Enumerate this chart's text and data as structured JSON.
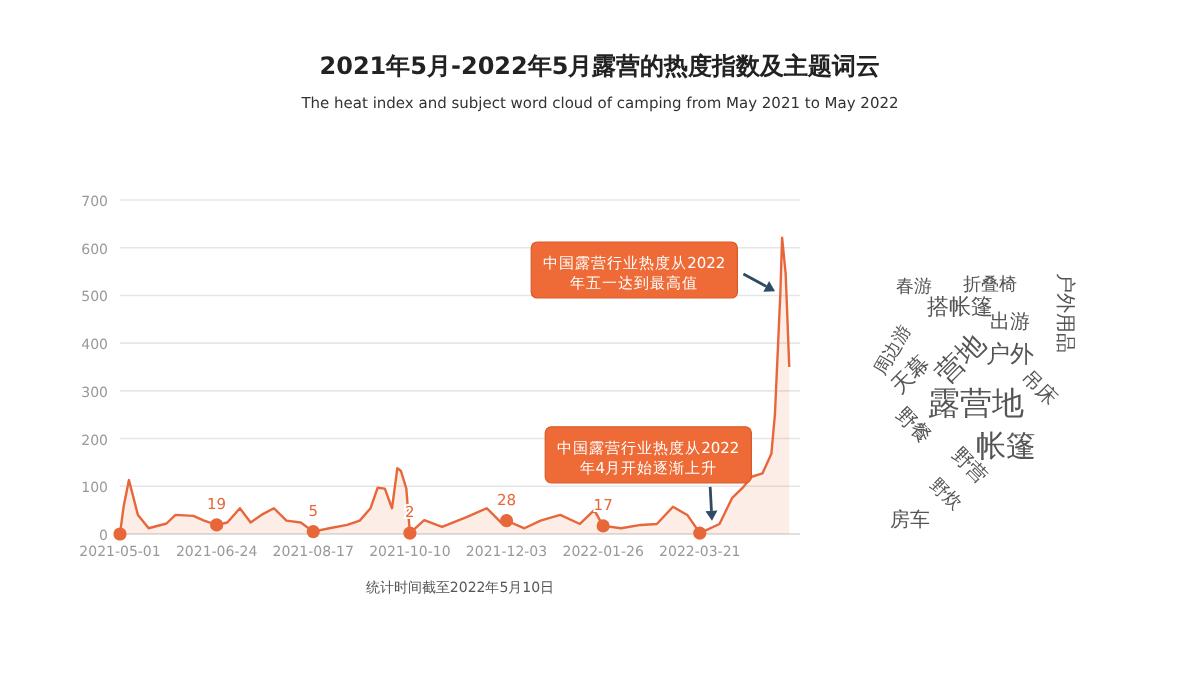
{
  "chart_data": [
    {
      "type": "area",
      "title": "2021年5月-2022年5月露营的热度指数及主题词云",
      "subtitle": "The heat index and subject word cloud of camping from May 2021 to May 2022",
      "xlim": [
        "2021-05-01",
        "2022-05-16"
      ],
      "ylim": [
        0,
        700
      ],
      "yticks": [
        0,
        100,
        200,
        300,
        400,
        500,
        600,
        700
      ],
      "xticks": [
        "2021-05-01",
        "2021-06-24",
        "2021-08-17",
        "2021-10-10",
        "2021-12-03",
        "2022-01-26",
        "2022-03-21"
      ],
      "grid": "y",
      "series": [
        {
          "type": "area",
          "color": "#e8673a",
          "x": [
            "2021-05-01",
            "2021-05-03",
            "2021-05-06",
            "2021-05-11",
            "2021-05-14",
            "2021-05-17",
            "2021-05-27",
            "2021-06-01",
            "2021-06-11",
            "2021-06-17",
            "2021-06-24",
            "2021-06-30",
            "2021-07-07",
            "2021-07-13",
            "2021-07-19",
            "2021-07-26",
            "2021-08-02",
            "2021-08-10",
            "2021-08-17",
            "2021-08-26",
            "2021-09-05",
            "2021-09-12",
            "2021-09-18",
            "2021-09-22",
            "2021-09-26",
            "2021-09-30",
            "2021-10-03",
            "2021-10-05",
            "2021-10-08",
            "2021-10-10",
            "2021-10-18",
            "2021-10-28",
            "2021-11-11",
            "2021-11-22",
            "2021-11-30",
            "2021-12-03",
            "2021-12-13",
            "2021-12-22",
            "2022-01-02",
            "2022-01-13",
            "2022-01-21",
            "2022-01-26",
            "2022-02-05",
            "2022-02-16",
            "2022-02-25",
            "2022-03-06",
            "2022-03-14",
            "2022-03-21",
            "2022-04-01",
            "2022-04-08",
            "2022-04-14",
            "2022-04-19",
            "2022-04-25",
            "2022-04-30",
            "2022-05-02",
            "2022-05-05",
            "2022-05-06",
            "2022-05-08",
            "2022-05-10"
          ],
          "values": [
            0,
            57,
            113,
            40,
            26,
            12,
            22,
            40,
            38,
            28,
            19,
            24,
            54,
            24,
            40,
            54,
            28,
            24,
            5,
            12,
            19,
            28,
            54,
            97,
            95,
            54,
            138,
            132,
            95,
            2,
            29,
            15,
            36,
            54,
            24,
            28,
            12,
            28,
            40,
            21,
            50,
            17,
            12,
            19,
            21,
            57,
            40,
            2,
            21,
            75,
            97,
            120,
            127,
            168,
            251,
            503,
            621,
            545,
            350
          ]
        },
        {
          "type": "scatter",
          "color": "#e8673a",
          "marker": "circle",
          "x": [
            "2021-05-01",
            "2021-06-24",
            "2021-08-17",
            "2021-10-10",
            "2021-12-03",
            "2022-01-26",
            "2022-03-21"
          ],
          "values": [
            0,
            19,
            5,
            2,
            28,
            17,
            2
          ],
          "value_labels": [
            null,
            "19",
            "5",
            "2",
            "28",
            "17",
            null
          ]
        }
      ],
      "annotations": [
        {
          "text": "中国露营行业热度从2022年五一达到最高值",
          "x": "2022-05-05",
          "y": 503
        },
        {
          "text": "中国露营行业热度从2022年4月开始逐渐上升",
          "x": "2022-03-28",
          "y": 15
        },
        "统计时间截至2022年5月10日"
      ]
    },
    {
      "type": "other",
      "annotations": [
        "露营地",
        "营地",
        "帐篷",
        "户外",
        "搭帐篷",
        "天幕",
        "周边游",
        "出游",
        "户外用品",
        "春游",
        "折叠椅",
        "吊床",
        "野餐",
        "野营",
        "房车",
        "野炊"
      ]
    }
  ]
}
